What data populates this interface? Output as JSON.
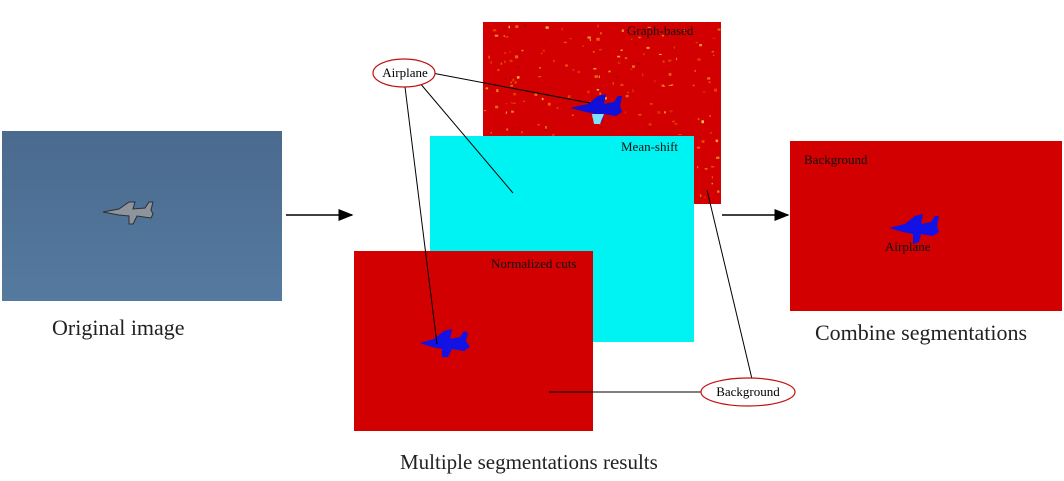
{
  "captions": {
    "original": "Original image",
    "multiple": "Multiple segmentations results",
    "combine": "Combine segmentations"
  },
  "panels": {
    "graph_based": "Graph-based",
    "mean_shift": "Mean-shift",
    "normalized_cuts": "Normalized cuts",
    "combined_background": "Background",
    "combined_airplane": "Airplane"
  },
  "labels": {
    "airplane": "Airplane",
    "background": "Background"
  },
  "colors": {
    "sky": "#4d6f92",
    "segment_red": "#d20000",
    "cyan": "#00f3f3",
    "airplane_blue": "#1010e0",
    "oval_border": "#c01010"
  }
}
